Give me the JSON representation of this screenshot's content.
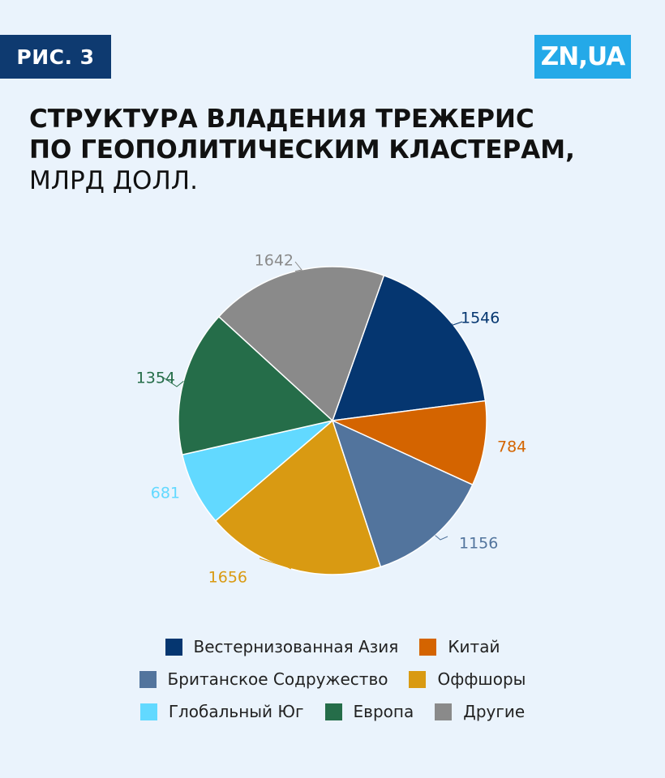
{
  "badge": "РИС. 3",
  "logo": "ZN,UA",
  "title": {
    "line1": "СТРУКТУРА ВЛАДЕНИЯ ТРЕЖЕРИС",
    "line2": "ПО ГЕОПОЛИТИЧЕСКИМ КЛАСТЕРАМ,",
    "line3": "МЛРД ДОЛЛ."
  },
  "chart_data": {
    "type": "pie",
    "title": "СТРУКТУРА ВЛАДЕНИЯ ТРЕЖЕРИС ПО ГЕОПОЛИТИЧЕСКИМ КЛАСТЕРАМ, МЛРД ДОЛЛ.",
    "start_angle_deg": 0,
    "direction": "clockwise",
    "legend_position": "bottom",
    "slices": [
      {
        "label": "Вестернизованная Азия",
        "value": 1546,
        "color": "#053670"
      },
      {
        "label": "Китай",
        "value": 784,
        "color": "#d46400"
      },
      {
        "label": "Британское Содружество",
        "value": 1156,
        "color": "#52749d"
      },
      {
        "label": "Оффшоры",
        "value": 1656,
        "color": "#d99a12"
      },
      {
        "label": "Глобальный Юг",
        "value": 681,
        "color": "#62d9ff"
      },
      {
        "label": "Европа",
        "value": 1354,
        "color": "#256d49"
      },
      {
        "label": "Другие",
        "value": 1642,
        "color": "#8a8a8a"
      }
    ]
  },
  "legend": {
    "rows": [
      [
        0,
        1
      ],
      [
        2,
        3
      ],
      [
        4,
        5,
        6
      ]
    ]
  }
}
